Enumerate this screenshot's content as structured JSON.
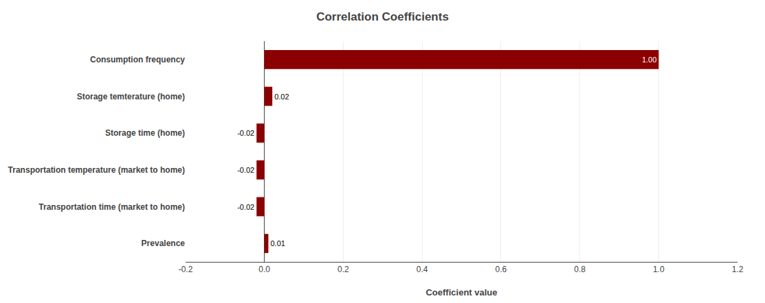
{
  "chart_data": {
    "type": "bar",
    "orientation": "horizontal",
    "title": "Correlation Coefficients",
    "xlabel": "Coefficient value",
    "categories": [
      "Prevalence",
      "Transportation time (market to home)",
      "Transportation temperature (market to home)",
      "Storage time (home)",
      "Storage temterature (home)",
      "Consumption frequency"
    ],
    "values": [
      0.01,
      -0.02,
      -0.02,
      -0.02,
      0.02,
      1.0
    ],
    "value_labels": [
      "0.01",
      "-0.02",
      "-0.02",
      "-0.02",
      "0.02",
      "1.00"
    ],
    "data_labels": true,
    "color": "#8B0000",
    "xlim": [
      -0.2,
      1.2
    ],
    "xticks": [
      -0.2,
      {
        "value": 0.0,
        "label": "0.0"
      },
      0.2,
      0.4,
      0.6,
      0.8,
      {
        "value": 1.0,
        "label": "1.0"
      },
      1.2
    ],
    "grid": true
  }
}
